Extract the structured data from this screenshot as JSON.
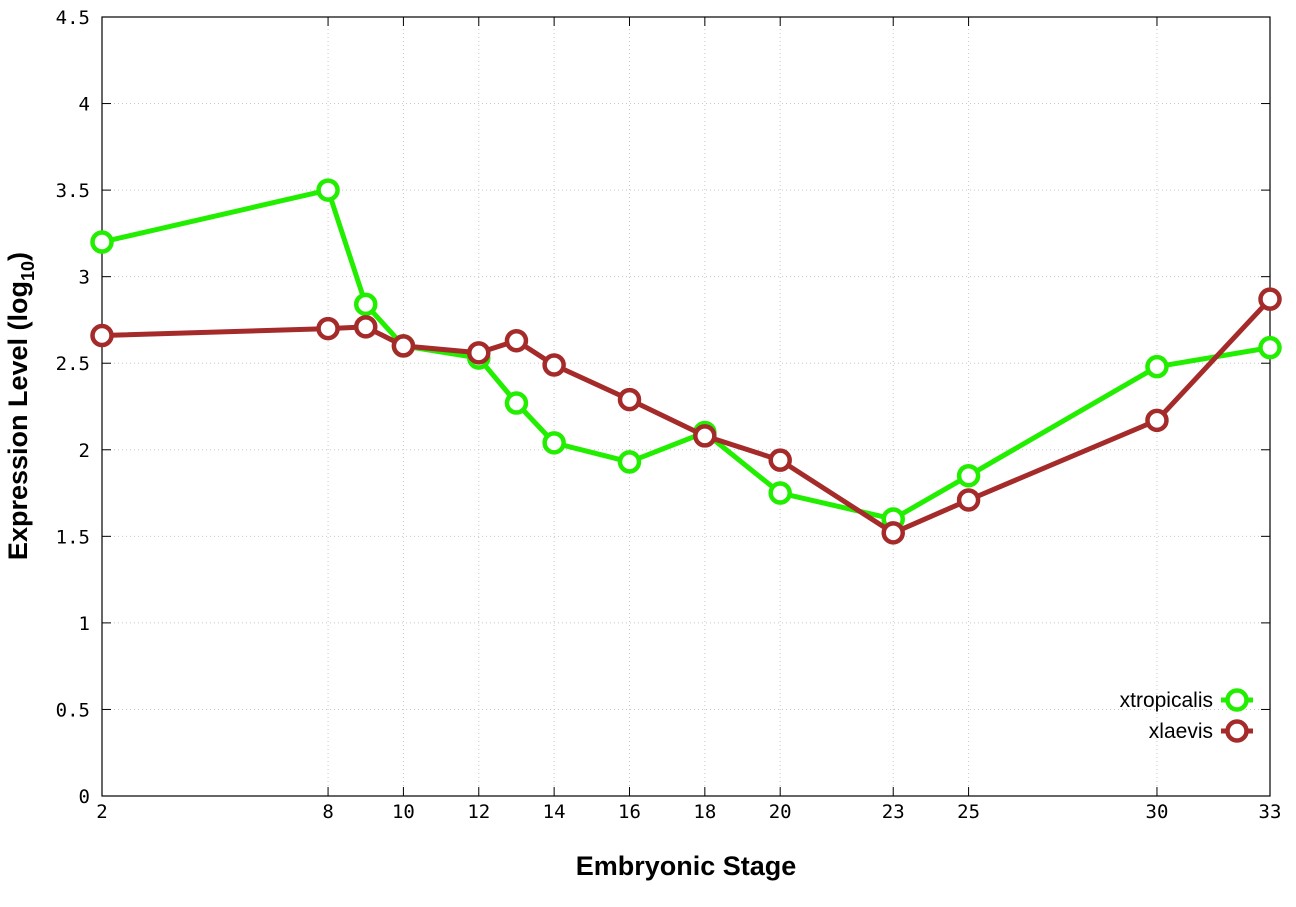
{
  "chart_data": {
    "type": "line",
    "xlabel": "Embryonic Stage",
    "ylabel": "Expression Level (log",
    "ylabel_sub": "10",
    "ylabel_close": ")",
    "x_ticks": [
      2,
      8,
      10,
      12,
      14,
      16,
      18,
      20,
      23,
      25,
      30,
      33
    ],
    "y_ticks": [
      "0",
      "0.5",
      "1",
      "1.5",
      "2",
      "2.5",
      "3",
      "3.5",
      "4",
      "4.5"
    ],
    "ylim": [
      0,
      4.5
    ],
    "grid": true,
    "legend_position": "bottom-right",
    "series": [
      {
        "name": "xtropicalis",
        "color": "#22ee00",
        "x": [
          2,
          8,
          9,
          10,
          12,
          13,
          14,
          16,
          18,
          20,
          23,
          25,
          30,
          33
        ],
        "y": [
          3.2,
          3.5,
          2.84,
          2.6,
          2.53,
          2.27,
          2.04,
          1.93,
          2.1,
          1.75,
          1.6,
          1.85,
          2.48,
          2.59
        ]
      },
      {
        "name": "xlaevis",
        "color": "#a52a2a",
        "x": [
          2,
          8,
          9,
          10,
          12,
          13,
          14,
          16,
          18,
          20,
          23,
          25,
          30,
          33
        ],
        "y": [
          2.66,
          2.7,
          2.71,
          2.6,
          2.56,
          2.63,
          2.49,
          2.29,
          2.08,
          1.94,
          1.52,
          1.71,
          2.17,
          2.87
        ]
      }
    ]
  }
}
